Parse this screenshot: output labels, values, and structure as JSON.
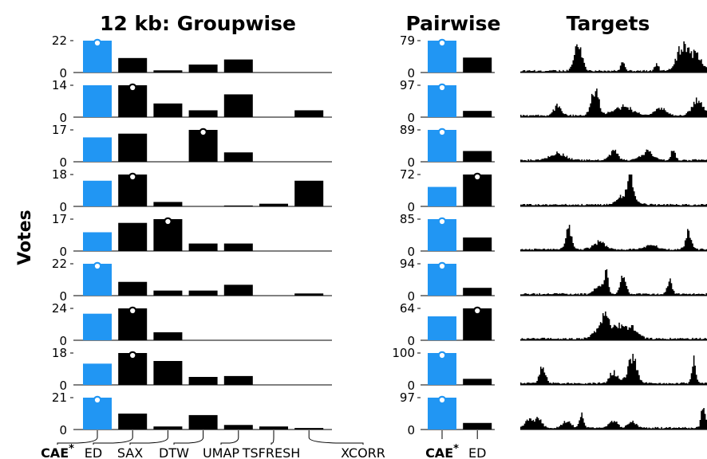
{
  "chart_data": {
    "type": "bar",
    "title_group": "12 kb: Groupwise",
    "title_pair": "Pairwise",
    "title_targets": "Targets",
    "ylabel": "Votes",
    "colors": {
      "highlight": "#2196f3",
      "default": "#000000",
      "axis": "#000000"
    },
    "groupwise": {
      "categories": [
        "CAE*",
        "ED",
        "SAX",
        "DTW",
        "UMAP",
        "TSFRESH",
        "XCORR"
      ],
      "rows": [
        {
          "ymax": 22,
          "values": [
            22,
            10,
            1.5,
            5.5,
            9,
            0,
            0
          ],
          "winner": 0
        },
        {
          "ymax": 14,
          "values": [
            14,
            14,
            6,
            3,
            10,
            0,
            3
          ],
          "winner": 1
        },
        {
          "ymax": 17,
          "values": [
            13,
            15,
            0,
            17,
            5,
            0,
            0
          ],
          "winner": 3
        },
        {
          "ymax": 18,
          "values": [
            14.5,
            18,
            2.5,
            0,
            0.5,
            1.5,
            14.5
          ],
          "winner": 1
        },
        {
          "ymax": 17,
          "values": [
            10,
            15,
            17,
            4,
            4,
            0,
            0
          ],
          "winner": 2
        },
        {
          "ymax": 22,
          "values": [
            22,
            9.5,
            3.5,
            3.5,
            7.5,
            0,
            1.5
          ],
          "winner": 0
        },
        {
          "ymax": 24,
          "values": [
            20,
            24,
            6,
            0,
            0,
            0,
            0
          ],
          "winner": 1
        },
        {
          "ymax": 18,
          "values": [
            12,
            18,
            13.5,
            4.5,
            5,
            0,
            0
          ],
          "winner": 1
        },
        {
          "ymax": 21,
          "values": [
            21,
            10.5,
            2,
            9.5,
            3,
            2,
            1
          ],
          "winner": 0
        }
      ]
    },
    "pairwise": {
      "categories": [
        "CAE*",
        "ED"
      ],
      "rows": [
        {
          "ymax": 79,
          "values": [
            79,
            37
          ],
          "winner": 0
        },
        {
          "ymax": 97,
          "values": [
            97,
            19
          ],
          "winner": 0
        },
        {
          "ymax": 89,
          "values": [
            89,
            30
          ],
          "winner": 0
        },
        {
          "ymax": 72,
          "values": [
            44,
            72
          ],
          "winner": 1
        },
        {
          "ymax": 85,
          "values": [
            85,
            36
          ],
          "winner": 0
        },
        {
          "ymax": 94,
          "values": [
            94,
            23
          ],
          "winner": 0
        },
        {
          "ymax": 64,
          "values": [
            48,
            64
          ],
          "winner": 1
        },
        {
          "ymax": 100,
          "values": [
            100,
            19
          ],
          "winner": 0
        },
        {
          "ymax": 97,
          "values": [
            97,
            20
          ],
          "winner": 0
        }
      ]
    },
    "targets": {
      "rows": [
        {
          "peaks": [
            [
              0.31,
              1.0,
              0.02
            ],
            [
              0.55,
              0.35,
              0.01
            ],
            [
              0.73,
              0.3,
              0.01
            ],
            [
              0.87,
              1.0,
              0.03
            ],
            [
              0.94,
              0.6,
              0.03
            ]
          ]
        },
        {
          "peaks": [
            [
              0.2,
              0.35,
              0.02
            ],
            [
              0.4,
              1.0,
              0.02
            ],
            [
              0.55,
              0.35,
              0.05
            ],
            [
              0.75,
              0.3,
              0.03
            ],
            [
              0.95,
              0.55,
              0.03
            ]
          ]
        },
        {
          "peaks": [
            [
              0.2,
              0.25,
              0.04
            ],
            [
              0.5,
              0.4,
              0.02
            ],
            [
              0.68,
              0.35,
              0.03
            ],
            [
              0.82,
              0.5,
              0.01
            ]
          ]
        },
        {
          "peaks": [
            [
              0.57,
              0.45,
              0.04
            ],
            [
              0.59,
              1.0,
              0.012
            ]
          ]
        },
        {
          "peaks": [
            [
              0.26,
              0.85,
              0.015
            ],
            [
              0.42,
              0.3,
              0.03
            ],
            [
              0.7,
              0.2,
              0.03
            ],
            [
              0.9,
              0.65,
              0.015
            ]
          ]
        },
        {
          "peaks": [
            [
              0.42,
              0.35,
              0.02
            ],
            [
              0.46,
              1.0,
              0.01
            ],
            [
              0.55,
              0.7,
              0.015
            ],
            [
              0.8,
              0.6,
              0.012
            ]
          ]
        },
        {
          "peaks": [
            [
              0.42,
              0.35,
              0.03
            ],
            [
              0.46,
              0.9,
              0.02
            ],
            [
              0.53,
              0.5,
              0.03
            ],
            [
              0.6,
              0.4,
              0.03
            ]
          ]
        },
        {
          "peaks": [
            [
              0.12,
              0.7,
              0.015
            ],
            [
              0.5,
              0.45,
              0.02
            ],
            [
              0.6,
              1.0,
              0.025
            ],
            [
              0.93,
              0.95,
              0.01
            ]
          ]
        },
        {
          "peaks": [
            [
              0.05,
              0.35,
              0.02
            ],
            [
              0.1,
              0.35,
              0.02
            ],
            [
              0.25,
              0.3,
              0.02
            ],
            [
              0.33,
              0.5,
              0.012
            ],
            [
              0.5,
              0.3,
              0.02
            ],
            [
              0.6,
              0.25,
              0.02
            ],
            [
              0.98,
              1.0,
              0.01
            ]
          ]
        }
      ]
    }
  }
}
